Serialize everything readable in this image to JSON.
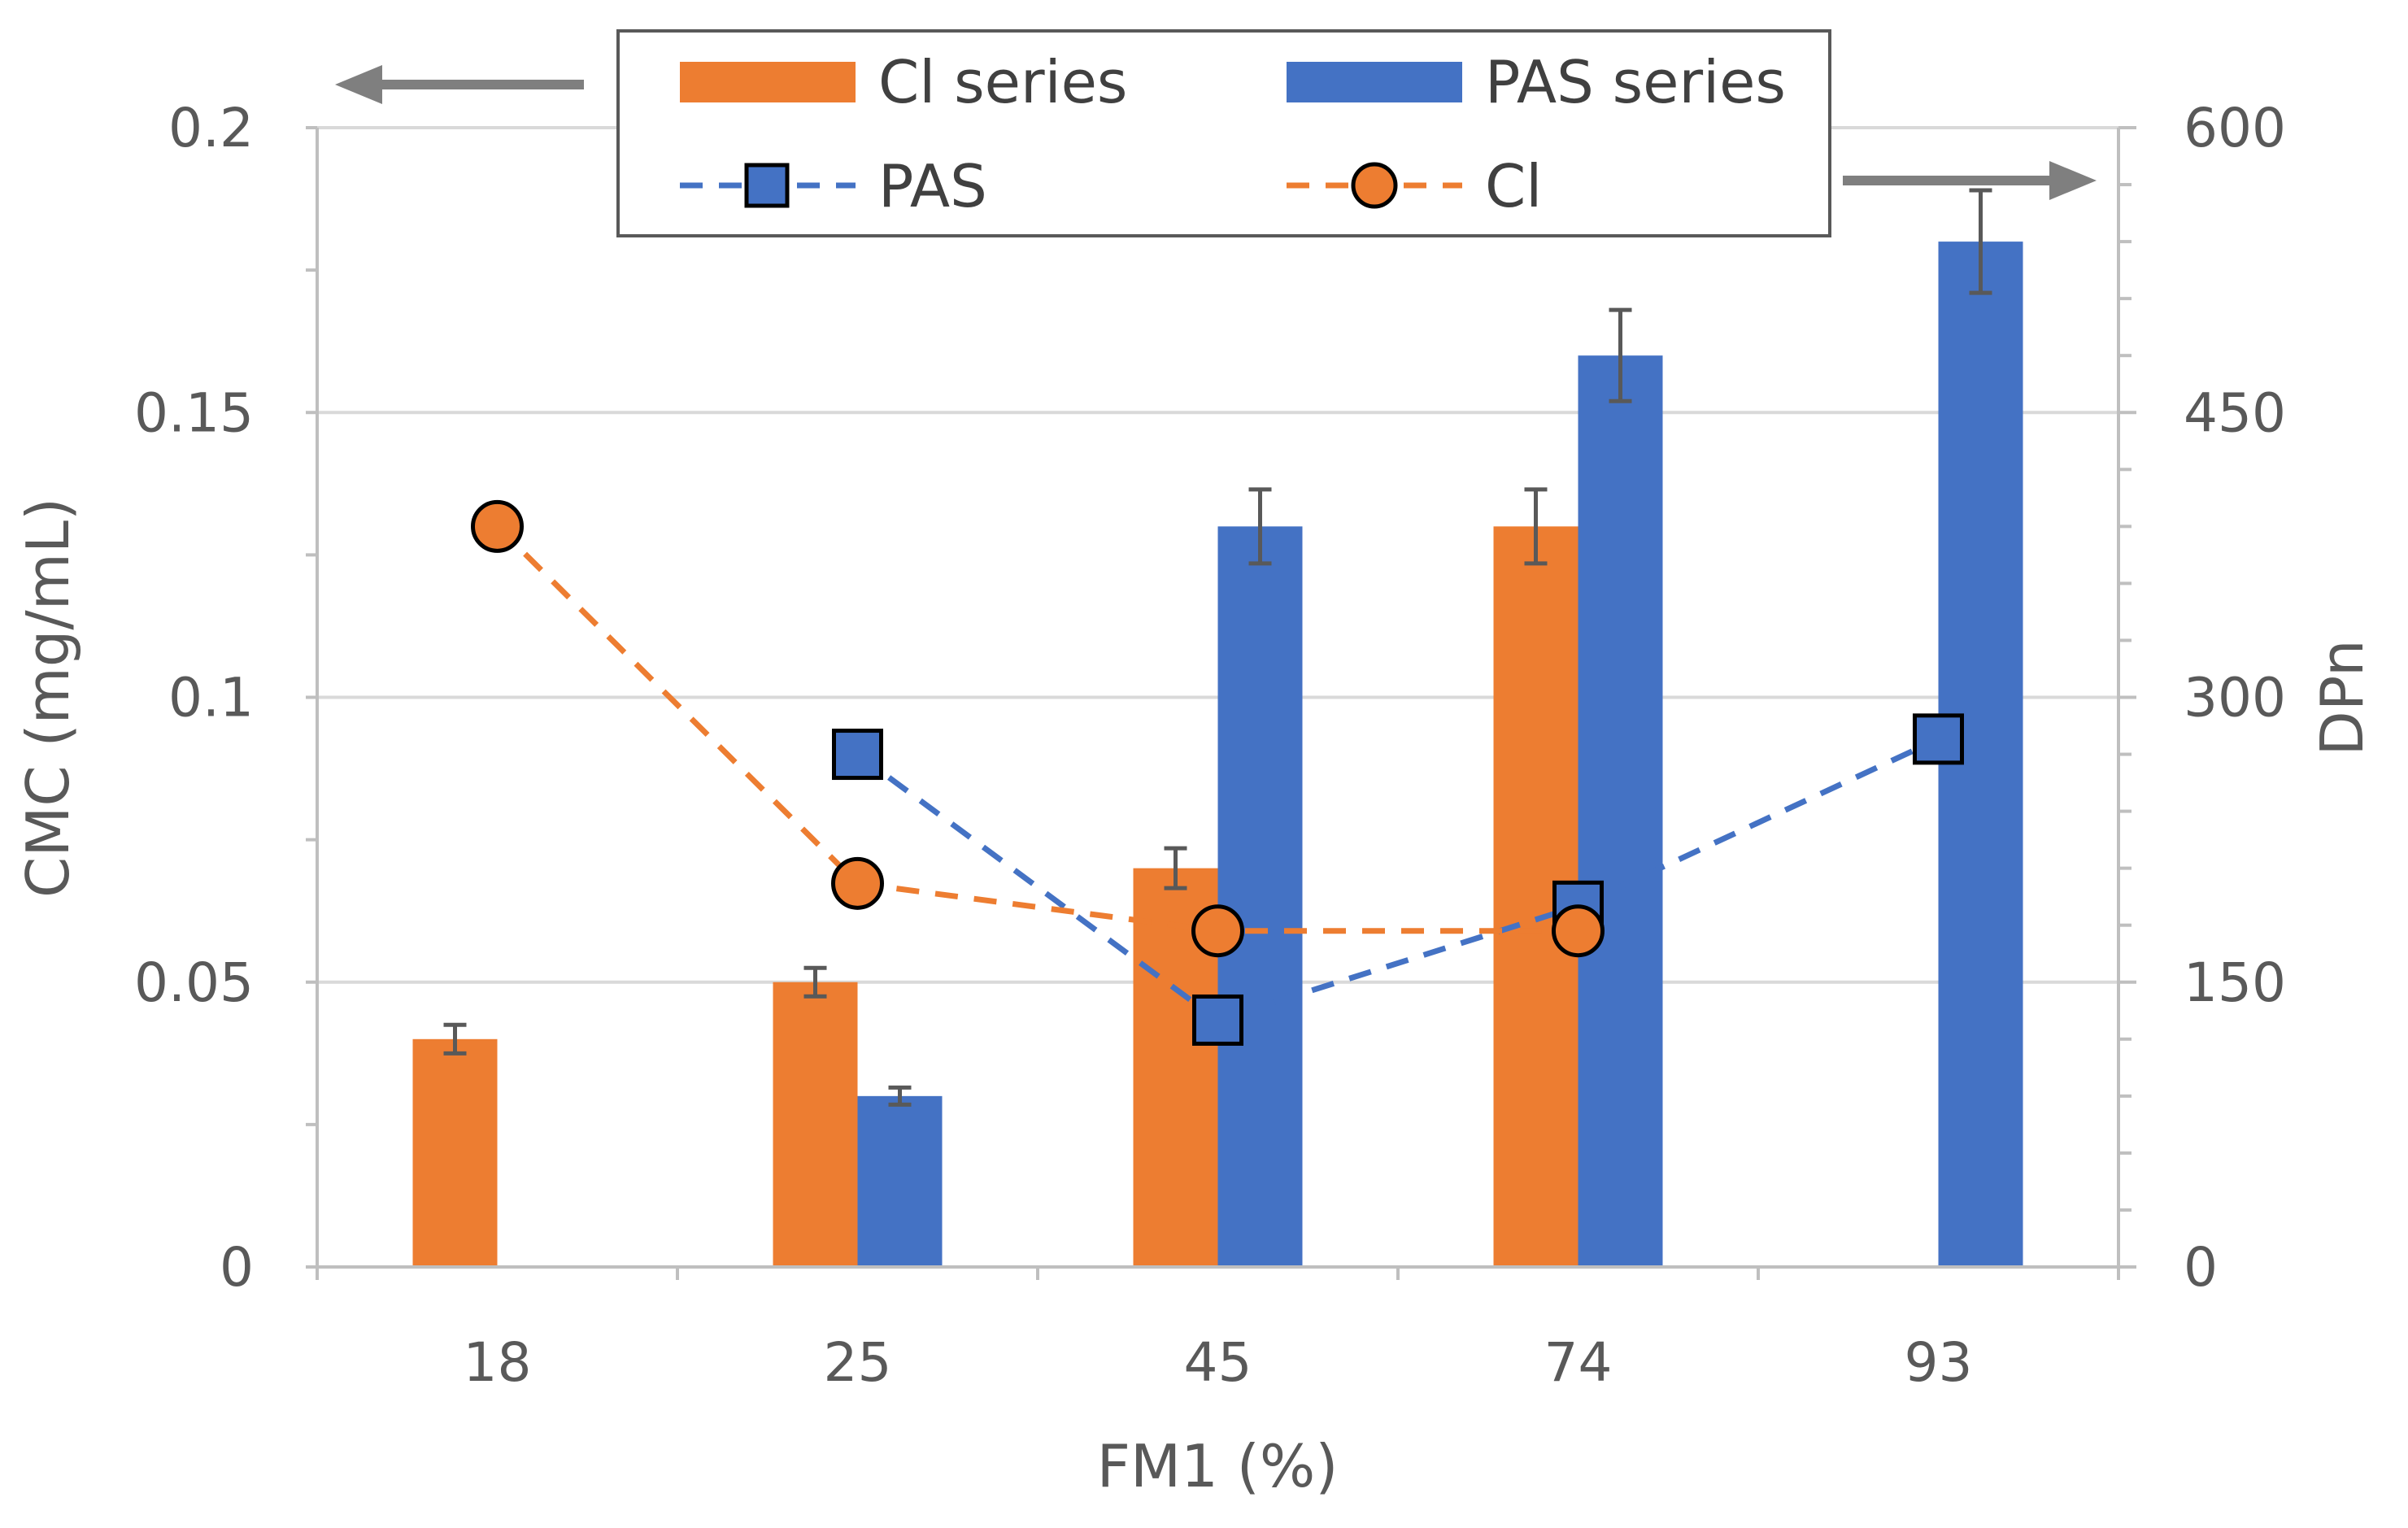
{
  "chart_data": {
    "type": "bar",
    "title": "",
    "xlabel": "FM1 (%)",
    "ylabel": "CMC (mg/mL)",
    "y2label": "DPn",
    "categories": [
      "18",
      "25",
      "45",
      "74",
      "93"
    ],
    "ylim": [
      0,
      0.2
    ],
    "y2lim": [
      0,
      600
    ],
    "yticks": [
      "0",
      "0.05",
      "0.1",
      "0.15",
      "0.2"
    ],
    "y2ticks": [
      "0",
      "150",
      "300",
      "450",
      "600"
    ],
    "series": [
      {
        "name": "Cl series",
        "kind": "bar",
        "axis": "left",
        "color": "#ED7D31",
        "values": [
          0.04,
          0.05,
          0.07,
          0.13,
          null
        ],
        "errors": [
          0.0025,
          0.0025,
          0.0035,
          0.0065,
          null
        ]
      },
      {
        "name": "PAS series",
        "kind": "bar",
        "axis": "left",
        "color": "#4472C4",
        "values": [
          null,
          0.03,
          0.13,
          0.16,
          0.18
        ],
        "errors": [
          null,
          0.0015,
          0.0065,
          0.008,
          0.009
        ]
      },
      {
        "name": "PAS",
        "kind": "line",
        "marker": "square",
        "axis": "right",
        "color": "#4472C4",
        "values": [
          null,
          270,
          130,
          190,
          278
        ]
      },
      {
        "name": "Cl",
        "kind": "line",
        "marker": "circle",
        "axis": "right",
        "color": "#ED7D31",
        "values": [
          390,
          202,
          177,
          177,
          null
        ]
      }
    ],
    "legend": {
      "position": "top-center",
      "entries": [
        "Cl series",
        "PAS series",
        "PAS",
        "Cl"
      ]
    },
    "axis_direction_arrows": [
      "left",
      "right"
    ],
    "colors": {
      "grid": "#D9D9D9",
      "axis": "#BFBFBF",
      "arrow": "#7F7F7F",
      "error_bar": "#595959"
    }
  }
}
